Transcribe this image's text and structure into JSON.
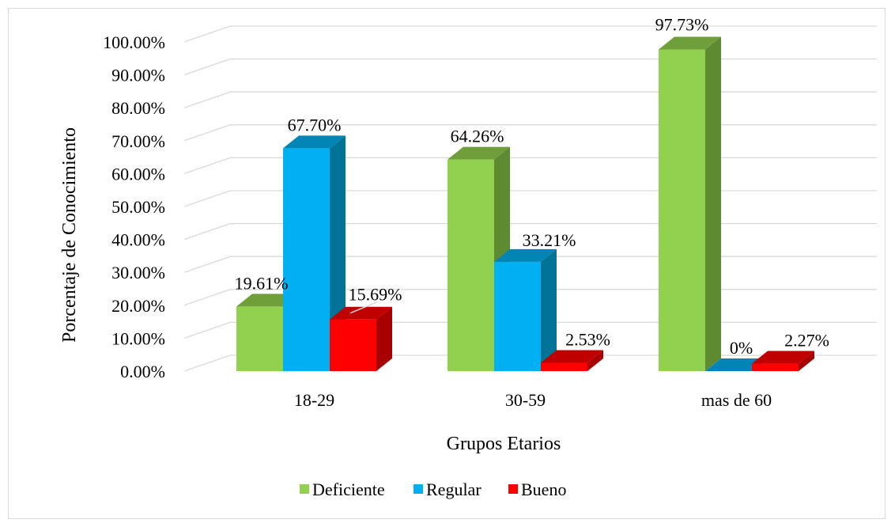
{
  "chart_data": {
    "type": "bar",
    "title": "",
    "xlabel": "Grupos Etarios",
    "ylabel": "Porcentaje de Conocimiento",
    "ylim": [
      0,
      100
    ],
    "yticks": [
      "0.00%",
      "10.00%",
      "20.00%",
      "30.00%",
      "40.00%",
      "50.00%",
      "60.00%",
      "70.00%",
      "80.00%",
      "90.00%",
      "100.00%"
    ],
    "categories": [
      "18-29",
      "30-59",
      "mas de 60"
    ],
    "series": [
      {
        "name": "Deficiente",
        "values": [
          19.61,
          64.26,
          97.73
        ],
        "labels": [
          "19.61%",
          "64.26%",
          "97.73%"
        ],
        "color": "#92d050",
        "side_color": "#5e8b32",
        "top_color": "#6f9e3a"
      },
      {
        "name": "Regular",
        "values": [
          67.7,
          33.21,
          0
        ],
        "labels": [
          "67.70%",
          "33.21%",
          "0%"
        ],
        "color": "#00b0f0",
        "side_color": "#007396",
        "top_color": "#0085b5"
      },
      {
        "name": "Bueno",
        "values": [
          15.69,
          2.53,
          2.27
        ],
        "labels": [
          "15.69%",
          "2.53%",
          "2.27%"
        ],
        "color": "#ff0000",
        "side_color": "#a80000",
        "top_color": "#c00000"
      }
    ],
    "grid": true,
    "legend_position": "bottom",
    "style": "3d-clustered-column"
  }
}
